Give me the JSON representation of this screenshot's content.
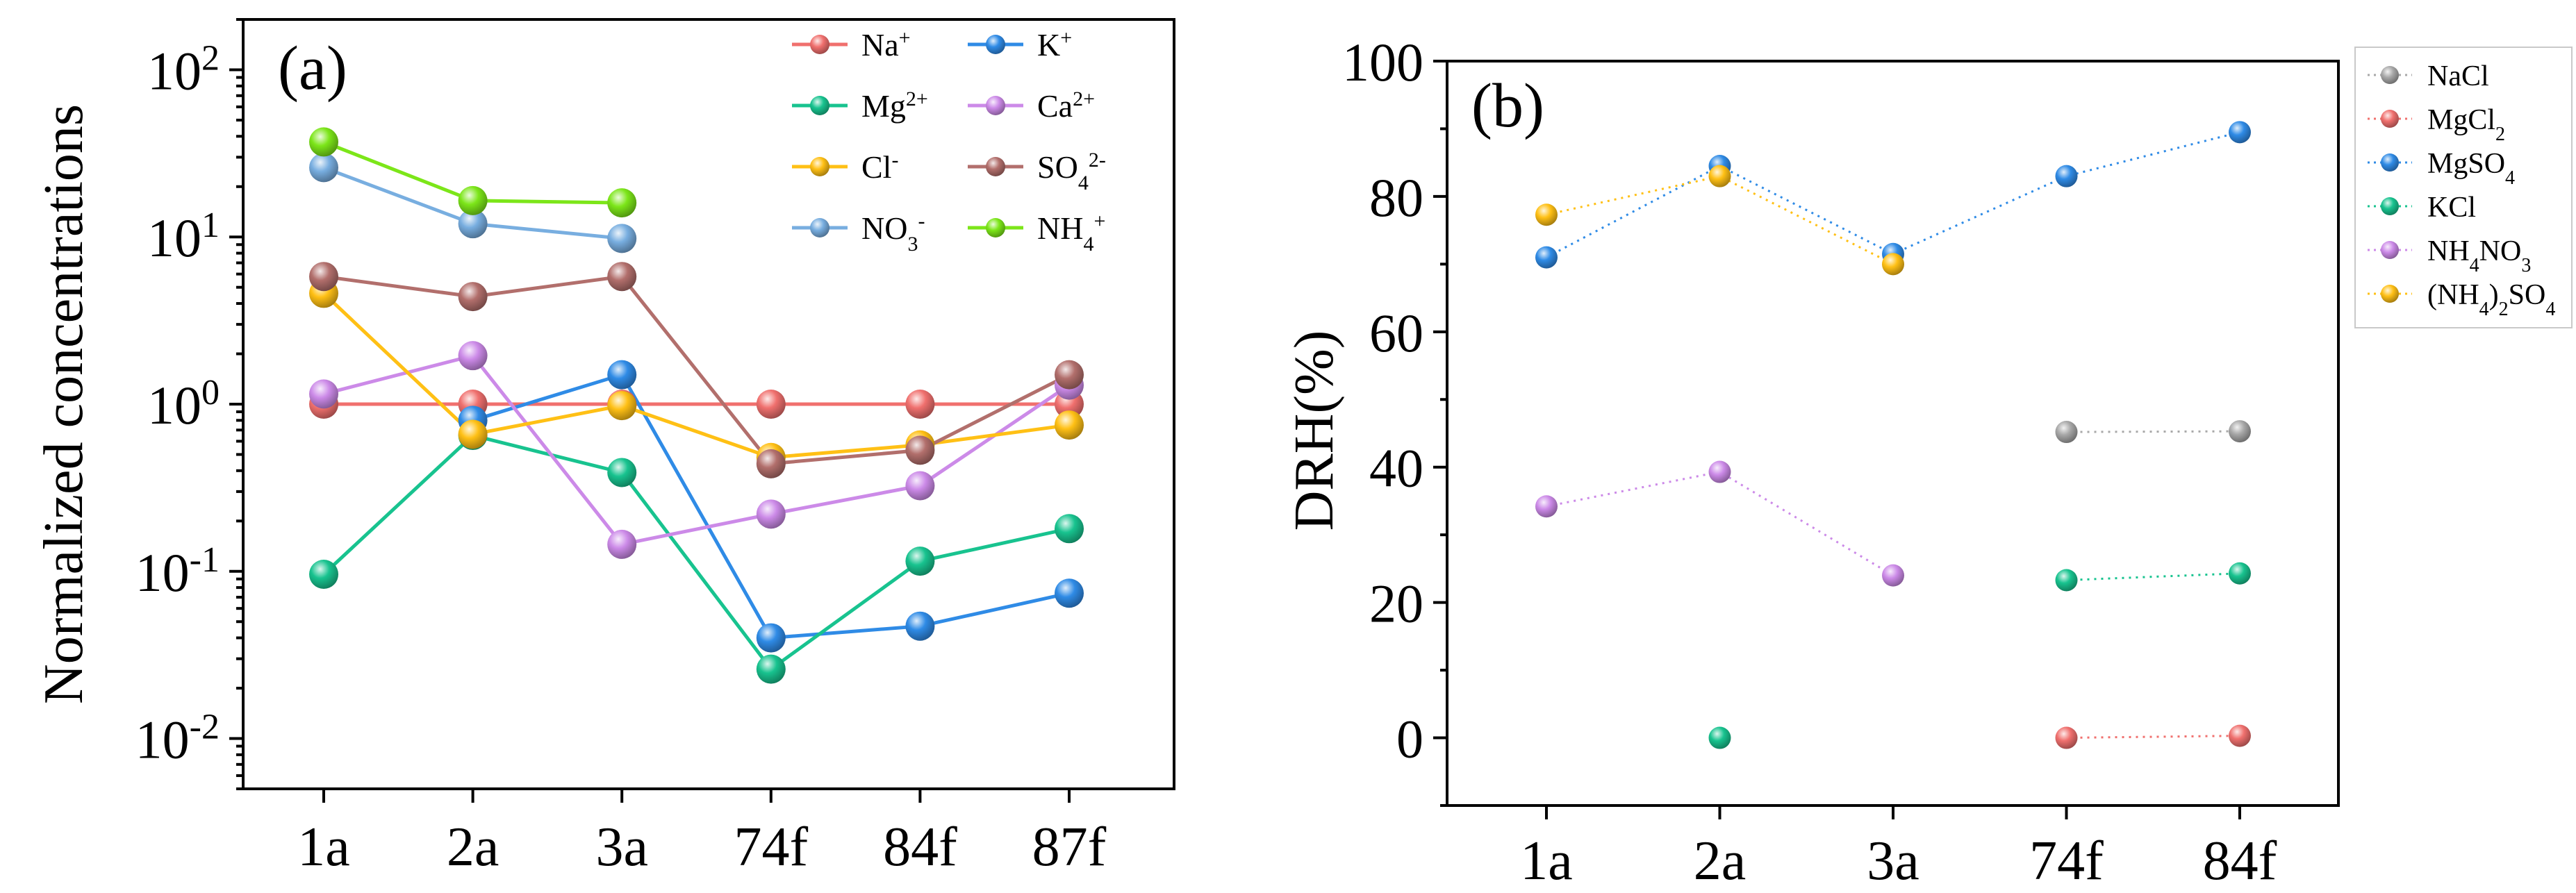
{
  "chart_data": [
    {
      "type": "line",
      "panel_label": "(a)",
      "ylabel": "Normalized concentrations",
      "yscale": "log",
      "ylim": [
        0.005,
        200
      ],
      "y_ticks": [
        {
          "value": 0.01,
          "base": "10",
          "exp": "-2"
        },
        {
          "value": 0.1,
          "base": "10",
          "exp": "-1"
        },
        {
          "value": 1,
          "base": "10",
          "exp": "0"
        },
        {
          "value": 10,
          "base": "10",
          "exp": "1"
        },
        {
          "value": 100,
          "base": "10",
          "exp": "2"
        }
      ],
      "categories": [
        "1a",
        "2a",
        "3a",
        "74f",
        "84f",
        "87f"
      ],
      "series": [
        {
          "name": "Na",
          "sup": "+",
          "sub": "",
          "sup2": "",
          "color": "#f0706e",
          "values": [
            1,
            1,
            1,
            1,
            1,
            1
          ]
        },
        {
          "name": "K",
          "sup": "+",
          "sub": "",
          "sup2": "",
          "color": "#2f8be6",
          "values": [
            null,
            0.8,
            1.5,
            0.04,
            0.047,
            0.074
          ]
        },
        {
          "name": "Mg",
          "sup": "2+",
          "sub": "",
          "sup2": "",
          "color": "#18c38f",
          "values": [
            0.096,
            0.65,
            0.39,
            0.026,
            0.115,
            0.18
          ]
        },
        {
          "name": "Ca",
          "sup": "2+",
          "sub": "",
          "sup2": "",
          "color": "#cc8ae8",
          "values": [
            1.15,
            1.95,
            0.145,
            0.22,
            0.325,
            1.3
          ]
        },
        {
          "name": "Cl",
          "sup": "-",
          "sub": "",
          "sup2": "",
          "color": "#ffc015",
          "values": [
            4.6,
            0.66,
            0.98,
            0.48,
            0.57,
            0.75
          ]
        },
        {
          "name": "SO",
          "sup": "",
          "sub": "4",
          "sup2": "2-",
          "color": "#b26f6c",
          "values": [
            5.8,
            4.4,
            5.8,
            0.44,
            0.53,
            1.5
          ]
        },
        {
          "name": "NO",
          "sup": "",
          "sub": "3",
          "sup2": "-",
          "color": "#78aee0",
          "values": [
            26,
            12,
            9.8,
            null,
            null,
            null
          ]
        },
        {
          "name": "NH",
          "sup": "",
          "sub": "4",
          "sup2": "+",
          "color": "#7ce619",
          "values": [
            37,
            16.5,
            16,
            null,
            null,
            null
          ]
        }
      ]
    },
    {
      "type": "line",
      "panel_label": "(b)",
      "ylabel": "DRH(%)",
      "ylim": [
        -10,
        100
      ],
      "y_ticks": [
        0,
        20,
        40,
        60,
        80,
        100
      ],
      "categories": [
        "1a",
        "2a",
        "3a",
        "74f",
        "84f"
      ],
      "series": [
        {
          "parts": [
            {
              "t": "NaCl",
              "s": ""
            }
          ],
          "color": "#a8a8a8",
          "values": [
            null,
            null,
            null,
            45.2,
            45.3
          ]
        },
        {
          "parts": [
            {
              "t": "MgCl",
              "s": ""
            },
            {
              "t": "2",
              "s": "sub"
            }
          ],
          "color": "#f0706e",
          "values": [
            null,
            null,
            null,
            0,
            0.3
          ]
        },
        {
          "parts": [
            {
              "t": "MgSO",
              "s": ""
            },
            {
              "t": "4",
              "s": "sub"
            }
          ],
          "color": "#2f8be6",
          "values": [
            71,
            84.5,
            71.5,
            83,
            89.5
          ]
        },
        {
          "parts": [
            {
              "t": "KCl",
              "s": ""
            }
          ],
          "color": "#18c38f",
          "values": [
            null,
            0,
            null,
            23.3,
            24.3
          ]
        },
        {
          "parts": [
            {
              "t": "NH",
              "s": ""
            },
            {
              "t": "4",
              "s": "sub"
            },
            {
              "t": "NO",
              "s": ""
            },
            {
              "t": "3",
              "s": "sub"
            }
          ],
          "color": "#cc8ae8",
          "values": [
            34.2,
            39.3,
            24,
            null,
            null
          ]
        },
        {
          "parts": [
            {
              "t": "(NH",
              "s": ""
            },
            {
              "t": "4",
              "s": "sub"
            },
            {
              "t": ")",
              "s": ""
            },
            {
              "t": "2",
              "s": "sub"
            },
            {
              "t": "SO",
              "s": ""
            },
            {
              "t": "4",
              "s": "sub"
            }
          ],
          "color": "#ffc015",
          "values": [
            77.3,
            83,
            70,
            null,
            null
          ]
        }
      ]
    }
  ]
}
